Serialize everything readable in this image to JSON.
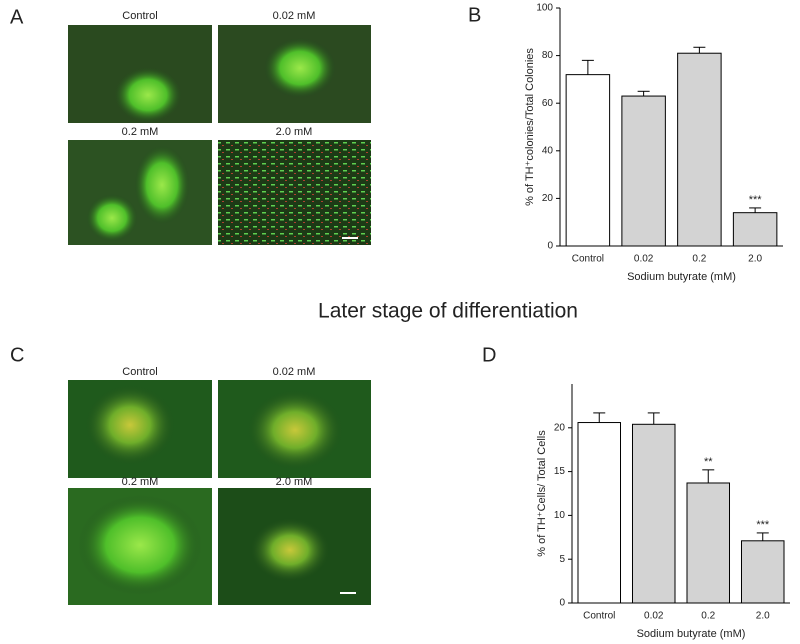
{
  "panel_a": {
    "letter": "A",
    "labels": [
      "Control",
      "0.02 mM",
      "0.2 mM",
      "2.0 mM"
    ]
  },
  "heading": "Later stage of differentiation",
  "panel_c": {
    "letter": "C",
    "labels": [
      "Control",
      "0.02 mM",
      "0.2 mM",
      "2.0 mM"
    ]
  },
  "chart_data": [
    {
      "type": "bar",
      "letter": "B",
      "categories": [
        "Control",
        "0.02",
        "0.2",
        "2.0"
      ],
      "values": [
        72,
        63,
        81,
        14
      ],
      "errors": [
        6,
        2,
        2.5,
        2
      ],
      "colors": [
        "#ffffff",
        "#d3d3d3",
        "#d3d3d3",
        "#d3d3d3"
      ],
      "annotations": [
        null,
        null,
        null,
        "***"
      ],
      "x_label": "Sodium butyrate (mM)",
      "y_label": "% of TH⁺colonies/Total Colonies",
      "ylim": [
        0,
        100
      ],
      "yticks": [
        0,
        20,
        40,
        60,
        80,
        100
      ]
    },
    {
      "type": "bar",
      "letter": "D",
      "categories": [
        "Control",
        "0.02",
        "0.2",
        "2.0"
      ],
      "values": [
        20.6,
        20.4,
        13.7,
        7.1
      ],
      "errors": [
        1.1,
        1.3,
        1.5,
        0.9
      ],
      "colors": [
        "#ffffff",
        "#d3d3d3",
        "#d3d3d3",
        "#d3d3d3"
      ],
      "annotations": [
        null,
        null,
        "**",
        "***"
      ],
      "x_label": "Sodium butyrate (mM)",
      "y_label": "% of TH⁺Cells/ Total Cells",
      "ylim": [
        0,
        25
      ],
      "yticks": [
        0,
        5,
        10,
        15,
        20
      ]
    }
  ]
}
